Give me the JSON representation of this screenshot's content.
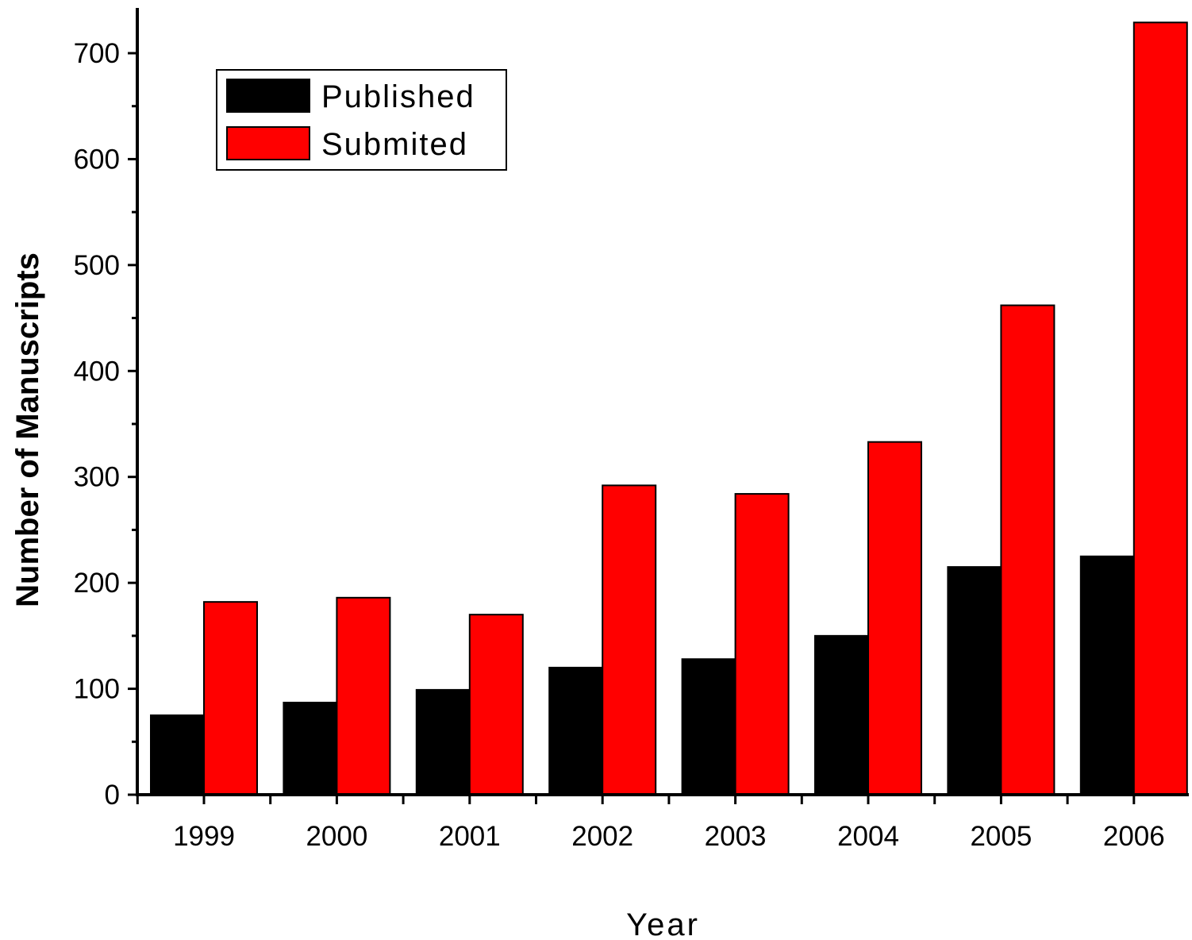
{
  "chart_data": {
    "type": "bar",
    "xlabel": "Year",
    "ylabel": "Number of Manuscripts",
    "categories": [
      "1999",
      "2000",
      "2001",
      "2002",
      "2003",
      "2004",
      "2005",
      "2006"
    ],
    "series": [
      {
        "name": "Published",
        "color": "#000000",
        "values": [
          75,
          87,
          99,
          120,
          128,
          150,
          215,
          225
        ]
      },
      {
        "name": "Submited",
        "color": "#ff0000",
        "values": [
          182,
          186,
          170,
          292,
          284,
          333,
          462,
          729
        ]
      }
    ],
    "ylim": [
      0,
      740
    ],
    "yticks": [
      0,
      100,
      200,
      300,
      400,
      500,
      600,
      700
    ],
    "ytick_labels": [
      "0",
      "100",
      "200",
      "300",
      "400",
      "500",
      "600",
      "700"
    ],
    "grid": false,
    "legend": "top-left"
  }
}
